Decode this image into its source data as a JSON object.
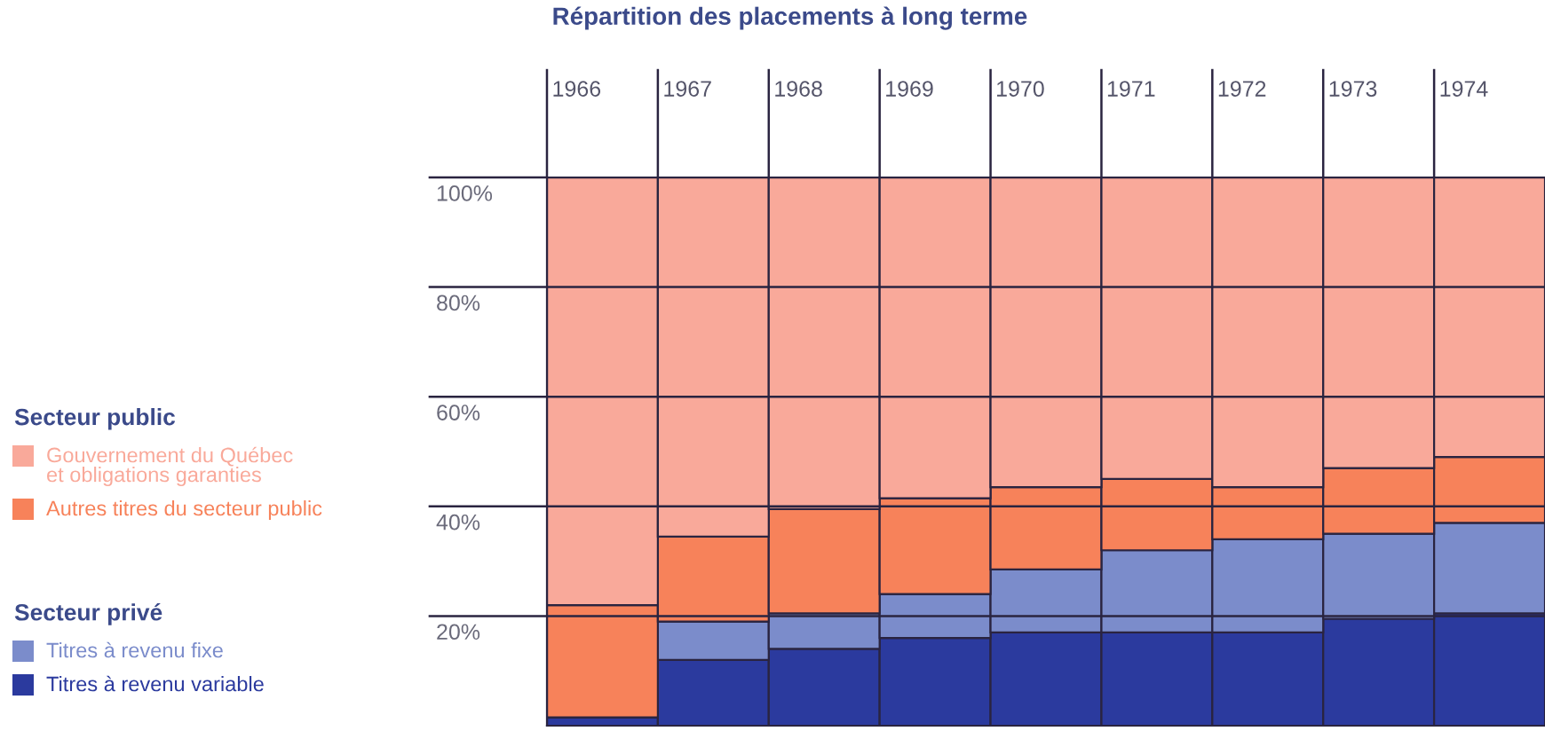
{
  "chart_data": {
    "type": "bar",
    "stacked": true,
    "title": "Répartition des placements à long terme",
    "categories": [
      "1966",
      "1967",
      "1968",
      "1969",
      "1970",
      "1971",
      "1972",
      "1973",
      "1974"
    ],
    "series": [
      {
        "name": "Titres à revenu variable",
        "color": "#2b3a9e",
        "values": [
          1.5,
          12,
          14,
          16,
          17,
          17,
          17,
          19.5,
          20.5
        ]
      },
      {
        "name": "Titres à revenu fixe",
        "color": "#7b8ccb",
        "values": [
          0,
          7,
          6.5,
          8,
          11.5,
          15,
          17,
          15.5,
          16.5
        ]
      },
      {
        "name": "Autres titres du secteur public",
        "color": "#f7825a",
        "values": [
          20.5,
          15.5,
          19,
          17.5,
          15,
          13,
          9.5,
          12,
          12
        ]
      },
      {
        "name": "Gouvernement du Québec\net obligations garanties",
        "color": "#f9a99a",
        "values": [
          78,
          65.5,
          60.5,
          58.5,
          56.5,
          55,
          56.5,
          53,
          51
        ]
      }
    ],
    "annotations": [
      "Secteur public",
      "Secteur privé"
    ],
    "ylim": [
      0,
      100
    ],
    "yticks": [
      {
        "value": 20,
        "label": "20%"
      },
      {
        "value": 40,
        "label": "40%"
      },
      {
        "value": 60,
        "label": "60%"
      },
      {
        "value": 80,
        "label": "80%"
      },
      {
        "value": 100,
        "label": "100%"
      }
    ],
    "grid": "y",
    "legend": "left"
  }
}
